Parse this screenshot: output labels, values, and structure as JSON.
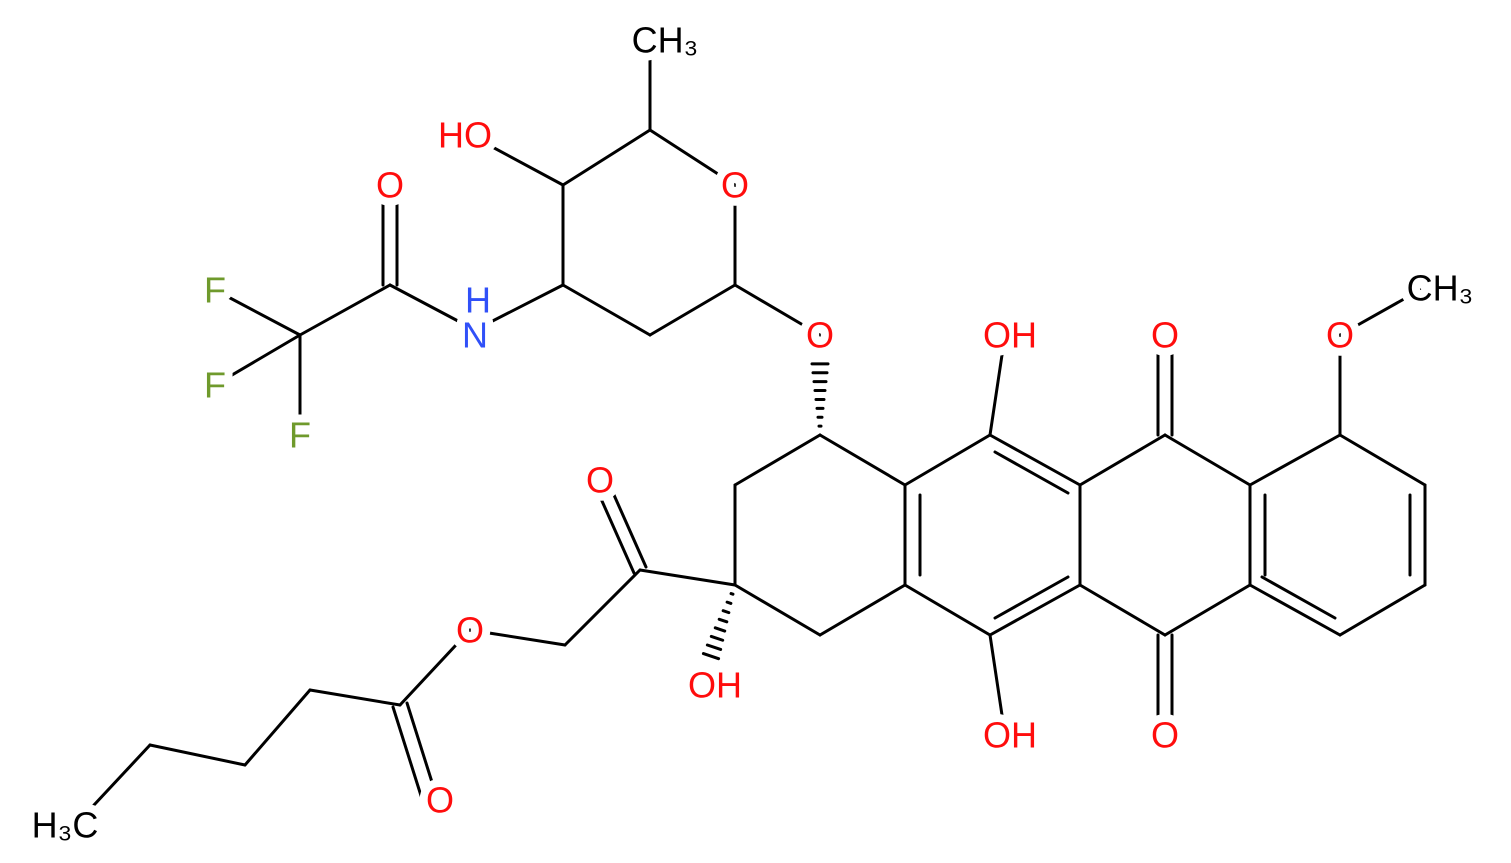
{
  "atoms": [
    {
      "label": "CH₃"
    },
    {
      "label": "HO"
    },
    {
      "label": "O"
    },
    {
      "label": "O"
    },
    {
      "label": "F"
    },
    {
      "label": "H"
    },
    {
      "label": "N"
    },
    {
      "label": "F"
    },
    {
      "label": "F"
    },
    {
      "label": "O"
    },
    {
      "label": "OH"
    },
    {
      "label": "O"
    },
    {
      "label": "O"
    },
    {
      "label": "CH₃"
    },
    {
      "label": "O"
    },
    {
      "label": "O"
    },
    {
      "label": "OH"
    },
    {
      "label": "OH"
    },
    {
      "label": "O"
    },
    {
      "label": "O"
    },
    {
      "label": "H₃C"
    }
  ]
}
